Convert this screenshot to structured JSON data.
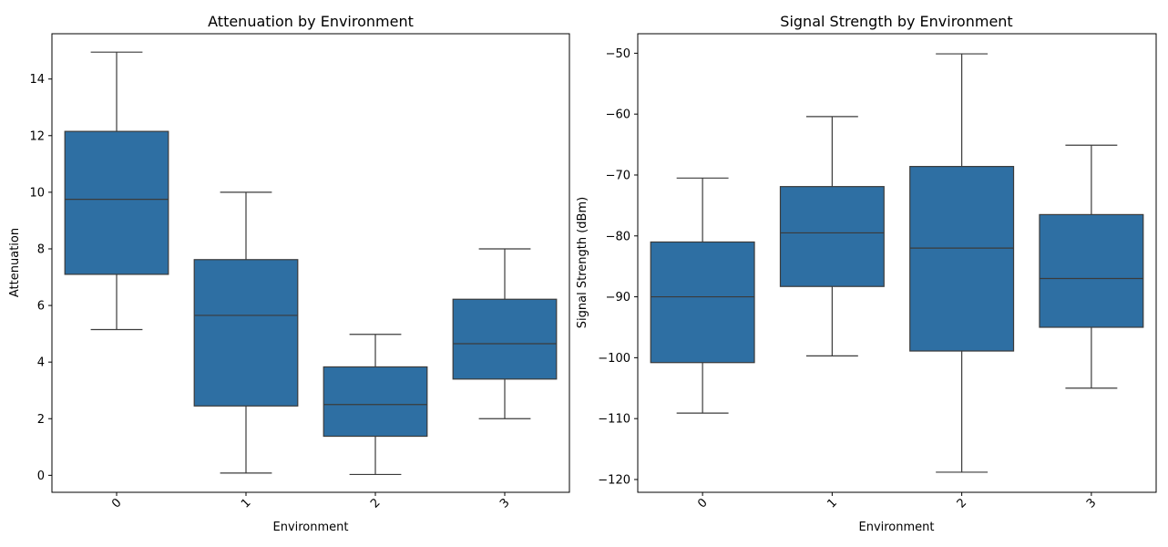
{
  "chart_data": [
    {
      "type": "box",
      "title": "Attenuation by Environment",
      "xlabel": "Environment",
      "ylabel": "Attenuation",
      "categories": [
        "0",
        "1",
        "2",
        "3"
      ],
      "ylim": [
        -0.6,
        15.6
      ],
      "yticks": [
        0,
        2,
        4,
        6,
        8,
        10,
        12,
        14
      ],
      "yticklabels": [
        "0",
        "2",
        "4",
        "6",
        "8",
        "10",
        "12",
        "14"
      ],
      "grid": false,
      "box_color": "#2e6fa3",
      "line_color": "#3b3b3b",
      "boxes": [
        {
          "whislo": 5.15,
          "q1": 7.1,
          "med": 9.75,
          "q3": 12.15,
          "whishi": 14.95
        },
        {
          "whislo": 0.08,
          "q1": 2.45,
          "med": 5.65,
          "q3": 7.62,
          "whishi": 10.0
        },
        {
          "whislo": 0.03,
          "q1": 1.38,
          "med": 2.5,
          "q3": 3.83,
          "whishi": 4.98
        },
        {
          "whislo": 2.0,
          "q1": 3.4,
          "med": 4.65,
          "q3": 6.22,
          "whishi": 8.0
        }
      ]
    },
    {
      "type": "box",
      "title": "Signal Strength by Environment",
      "xlabel": "Environment",
      "ylabel": "Signal Strength (dBm)",
      "categories": [
        "0",
        "1",
        "2",
        "3"
      ],
      "ylim": [
        -122.1,
        -46.8
      ],
      "yticks": [
        -120,
        -110,
        -100,
        -90,
        -80,
        -70,
        -60,
        -50
      ],
      "yticklabels": [
        "−120",
        "−110",
        "−100",
        "−90",
        "−80",
        "−70",
        "−60",
        "−50"
      ],
      "grid": false,
      "box_color": "#2e6fa3",
      "line_color": "#3b3b3b",
      "boxes": [
        {
          "whislo": -109.1,
          "q1": -100.8,
          "med": -90.0,
          "q3": -81.0,
          "whishi": -70.5
        },
        {
          "whislo": -99.7,
          "q1": -88.3,
          "med": -79.5,
          "q3": -71.9,
          "whishi": -60.4
        },
        {
          "whislo": -118.8,
          "q1": -98.9,
          "med": -82.0,
          "q3": -68.6,
          "whishi": -50.1
        },
        {
          "whislo": -105.0,
          "q1": -95.0,
          "med": -87.0,
          "q3": -76.5,
          "whishi": -65.1
        }
      ]
    }
  ]
}
